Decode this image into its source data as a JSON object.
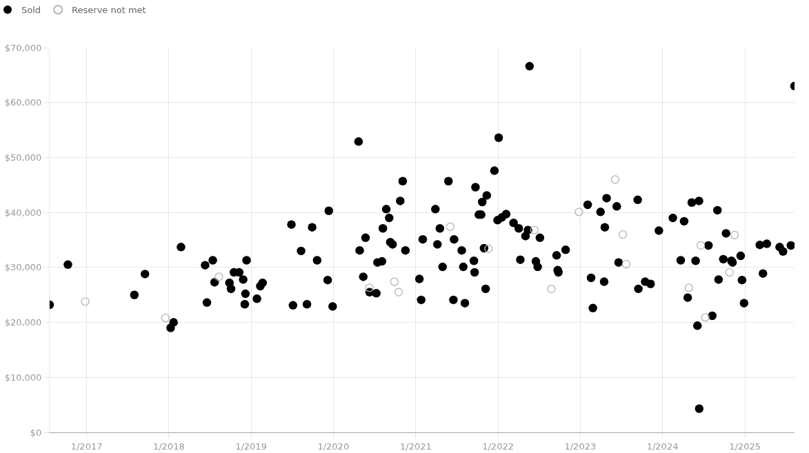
{
  "chart_data": {
    "type": "scatter",
    "marker": "circle",
    "grid": true,
    "legend": "top left",
    "xlim": [
      "2016-07-21",
      "2025-08-09"
    ],
    "xticks": [
      {
        "value": "2017-01-01",
        "label": "1/2017"
      },
      {
        "value": "2018-01-01",
        "label": "1/2018"
      },
      {
        "value": "2019-01-01",
        "label": "1/2019"
      },
      {
        "value": "2020-01-01",
        "label": "1/2020"
      },
      {
        "value": "2021-01-01",
        "label": "1/2021"
      },
      {
        "value": "2022-01-01",
        "label": "1/2022"
      },
      {
        "value": "2023-01-01",
        "label": "1/2023"
      },
      {
        "value": "2024-01-01",
        "label": "1/2024"
      },
      {
        "value": "2025-01-01",
        "label": "1/2025"
      }
    ],
    "ylim": [
      0,
      70000
    ],
    "yticks": [
      {
        "value": 0,
        "label": "$0"
      },
      {
        "value": 10000,
        "label": "$10,000"
      },
      {
        "value": 20000,
        "label": "$20,000"
      },
      {
        "value": 30000,
        "label": "$30,000"
      },
      {
        "value": 40000,
        "label": "$40,000"
      },
      {
        "value": 50000,
        "label": "$50,000"
      },
      {
        "value": 60000,
        "label": "$60,000"
      },
      {
        "value": 70000,
        "label": "$70,000"
      }
    ],
    "series": [
      {
        "name": "Sold",
        "color": "#000000",
        "x": [
          "2016-07-21",
          "2016-10-10",
          "2017-08-01",
          "2017-09-17",
          "2018-01-09",
          "2018-01-22",
          "2018-02-24",
          "2018-06-11",
          "2018-06-19",
          "2018-07-15",
          "2018-07-23",
          "2018-09-27",
          "2018-10-04",
          "2018-10-17",
          "2018-11-09",
          "2018-11-27",
          "2018-12-04",
          "2018-12-07",
          "2018-12-12",
          "2019-01-27",
          "2019-02-11",
          "2019-02-21",
          "2019-06-29",
          "2019-07-06",
          "2019-08-11",
          "2019-09-06",
          "2019-09-29",
          "2019-10-21",
          "2019-12-07",
          "2019-12-12",
          "2019-12-29",
          "2020-04-22",
          "2020-04-27",
          "2020-05-13",
          "2020-05-23",
          "2020-06-10",
          "2020-07-10",
          "2020-07-15",
          "2020-08-04",
          "2020-08-08",
          "2020-08-23",
          "2020-09-05",
          "2020-09-10",
          "2020-09-20",
          "2020-10-24",
          "2020-11-04",
          "2020-11-16",
          "2021-01-17",
          "2021-01-25",
          "2021-02-01",
          "2021-03-29",
          "2021-04-07",
          "2021-04-18",
          "2021-04-30",
          "2021-05-26",
          "2021-06-17",
          "2021-06-20",
          "2021-07-24",
          "2021-07-31",
          "2021-08-07",
          "2021-09-16",
          "2021-09-19",
          "2021-09-23",
          "2021-10-08",
          "2021-10-18",
          "2021-10-23",
          "2021-10-31",
          "2021-11-07",
          "2021-11-12",
          "2021-12-16",
          "2021-12-30",
          "2022-01-04",
          "2022-01-18",
          "2022-02-06",
          "2022-03-11",
          "2022-04-03",
          "2022-04-10",
          "2022-05-03",
          "2022-05-14",
          "2022-05-21",
          "2022-06-18",
          "2022-06-26",
          "2022-07-06",
          "2022-09-18",
          "2022-09-23",
          "2022-09-26",
          "2022-10-28",
          "2023-02-03",
          "2023-02-18",
          "2023-02-26",
          "2023-04-01",
          "2023-04-17",
          "2023-04-20",
          "2023-04-28",
          "2023-06-12",
          "2023-06-20",
          "2023-09-13",
          "2023-09-16",
          "2023-10-16",
          "2023-11-09",
          "2023-12-16",
          "2024-02-16",
          "2024-03-22",
          "2024-04-06",
          "2024-04-22",
          "2024-05-10",
          "2024-05-27",
          "2024-06-04",
          "2024-06-11",
          "2024-06-12",
          "2024-07-23",
          "2024-08-09",
          "2024-09-01",
          "2024-09-06",
          "2024-09-27",
          "2024-10-09",
          "2024-11-02",
          "2024-11-07",
          "2024-12-13",
          "2024-12-19",
          "2024-12-28",
          "2025-03-08",
          "2025-03-22",
          "2025-04-08",
          "2025-06-04",
          "2025-06-19",
          "2025-07-24",
          "2025-08-09"
        ],
        "values": [
          23200,
          30500,
          25000,
          28800,
          19000,
          20000,
          33700,
          30400,
          23600,
          31300,
          27300,
          27200,
          26100,
          29100,
          29100,
          27800,
          23300,
          25200,
          31300,
          24300,
          26600,
          27200,
          37800,
          23100,
          33000,
          23300,
          37300,
          31300,
          27700,
          40300,
          22900,
          52900,
          33100,
          28300,
          35400,
          25500,
          25300,
          30900,
          31100,
          37100,
          40600,
          39000,
          34600,
          34200,
          42100,
          45700,
          33100,
          27900,
          24100,
          35100,
          40600,
          34200,
          37100,
          30100,
          45700,
          24100,
          35100,
          33100,
          30100,
          23500,
          31200,
          29100,
          44600,
          39600,
          39600,
          41900,
          33500,
          26100,
          43100,
          47600,
          38600,
          53600,
          39100,
          39700,
          38100,
          37100,
          31400,
          35700,
          36800,
          66600,
          31100,
          30100,
          35400,
          32200,
          29500,
          29100,
          33200,
          41400,
          28100,
          22600,
          40100,
          27400,
          37300,
          42600,
          41100,
          30900,
          42300,
          26100,
          27400,
          27000,
          36700,
          39000,
          31300,
          38400,
          24500,
          41800,
          31200,
          19400,
          42100,
          4300,
          34000,
          21200,
          40400,
          27800,
          31500,
          36200,
          31200,
          30900,
          32100,
          27700,
          23500,
          34100,
          28900,
          34300,
          33700,
          32900,
          34000,
          63000
        ]
      },
      {
        "name": "Reserve not met",
        "color": "#b3b3b3",
        "marker": "circle-open",
        "x": [
          "2016-12-26",
          "2017-12-17",
          "2018-08-11",
          "2020-06-09",
          "2020-09-28",
          "2020-10-17",
          "2021-06-03",
          "2021-11-20",
          "2022-06-11",
          "2022-08-26",
          "2022-12-26",
          "2023-06-05",
          "2023-07-09",
          "2023-07-24",
          "2024-04-27",
          "2024-06-19",
          "2024-07-09",
          "2024-10-24",
          "2024-11-16"
        ],
        "values": [
          23800,
          20800,
          28300,
          26300,
          27400,
          25500,
          37400,
          33400,
          36800,
          26100,
          40100,
          46000,
          36000,
          30600,
          26300,
          34000,
          20900,
          29100,
          35900
        ]
      }
    ]
  }
}
